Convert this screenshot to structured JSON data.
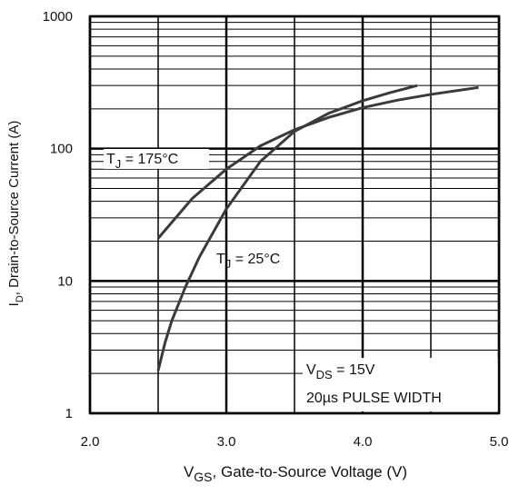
{
  "chart_data": {
    "type": "line",
    "y_label": {
      "main": "I",
      "sub": "D",
      "rest": ", Drain-to-Source Current  (A)"
    },
    "x_label": {
      "main": "V",
      "sub": "GS",
      "rest": ", Gate-to-Source Voltage (V)"
    },
    "annotations": [
      {
        "main": "T",
        "sub": "J",
        "rest": " = 175°C"
      },
      {
        "main": "T",
        "sub": "J",
        "rest": " = 25°C"
      },
      {
        "main": "V",
        "sub": "DS",
        "rest": " = 15V"
      },
      {
        "text": "20µs PULSE WIDTH"
      }
    ],
    "log_y": true,
    "grid": true,
    "xlim": [
      2,
      5
    ],
    "ylim": [
      1,
      1000
    ],
    "xticks": [
      {
        "value": 2,
        "label": "2.0"
      },
      {
        "value": 3,
        "label": "3.0"
      },
      {
        "value": 4,
        "label": "4.0"
      },
      {
        "value": 5,
        "label": "5.0"
      }
    ],
    "yticks": [
      1,
      10,
      100,
      1000
    ],
    "x_minor_ticks": [
      2.5,
      3.5,
      4.5
    ],
    "y_minor_ticks": [
      2,
      3,
      4,
      5,
      6,
      7,
      8,
      9,
      20,
      30,
      40,
      50,
      60,
      70,
      80,
      90,
      200,
      300,
      400,
      500,
      600,
      700,
      800,
      900
    ],
    "series": [
      {
        "name": "TJ = 175°C",
        "color": "#3a3a3a",
        "x": [
          2.5,
          2.75,
          3.0,
          3.25,
          3.5,
          3.75,
          4.0,
          4.25,
          4.5,
          4.85
        ],
        "values": [
          21,
          42,
          70,
          105,
          139,
          172,
          204,
          232,
          257,
          290
        ]
      },
      {
        "name": "TJ = 25°C",
        "color": "#3a3a3a",
        "x": [
          2.5,
          2.55,
          2.6,
          2.7,
          2.8,
          3.0,
          3.25,
          3.5,
          3.75,
          4.0,
          4.2,
          4.4
        ],
        "values": [
          2.1,
          3.4,
          5,
          9,
          15,
          35,
          80,
          135,
          185,
          230,
          265,
          300
        ]
      }
    ]
  }
}
